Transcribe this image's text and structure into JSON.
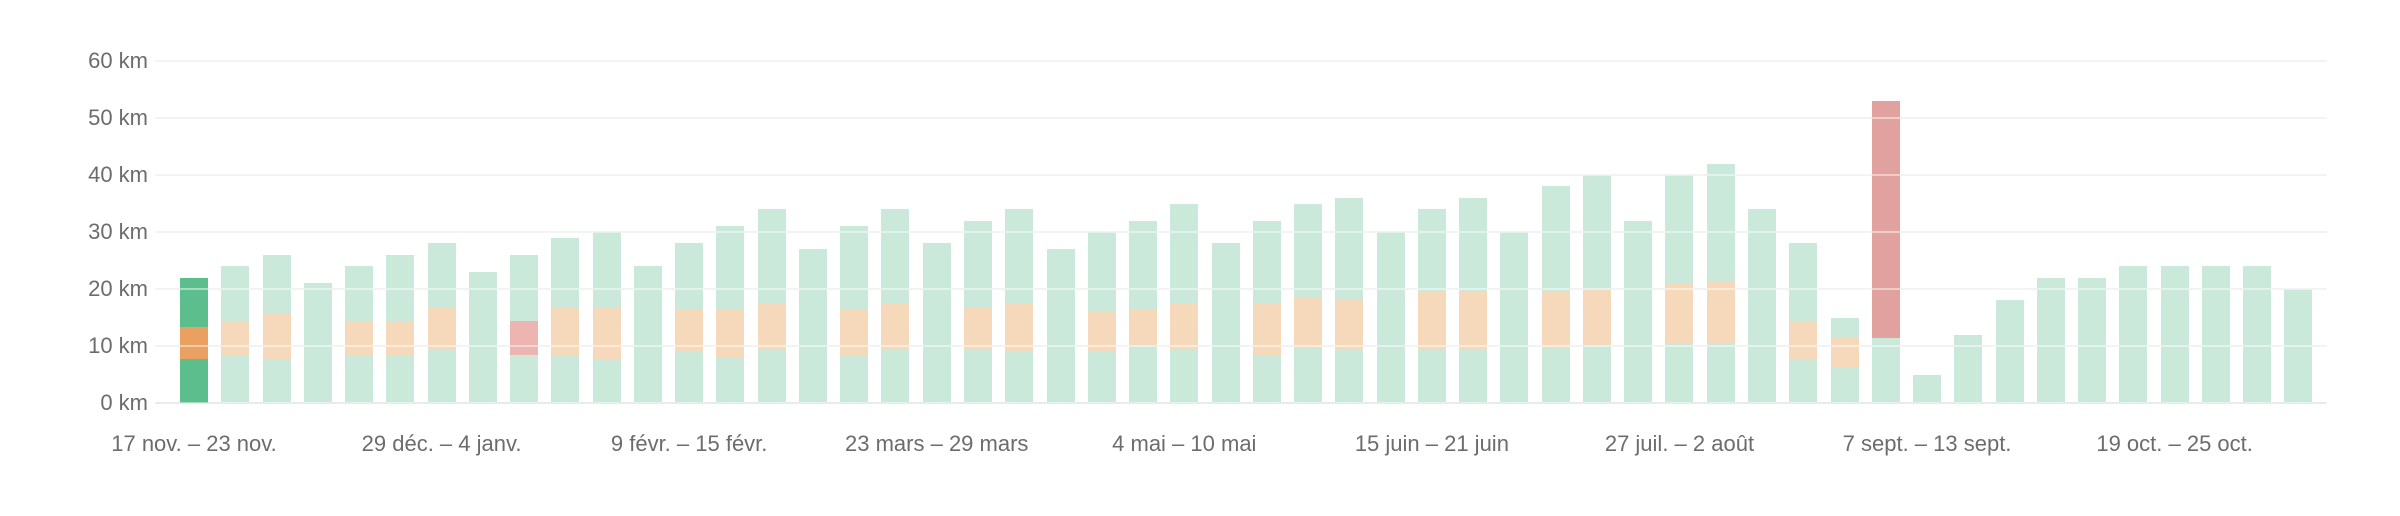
{
  "chart_data": {
    "type": "bar",
    "title": "",
    "unit": "km",
    "ylabel": "",
    "xlabel": "",
    "ylim": [
      0,
      60
    ],
    "grid": true,
    "legend": "none",
    "y_ticks": [
      {
        "km": 60,
        "label": "60 km"
      },
      {
        "km": 50,
        "label": "50 km"
      },
      {
        "km": 40,
        "label": "40 km"
      },
      {
        "km": 30,
        "label": "30 km"
      },
      {
        "km": 20,
        "label": "20 km"
      },
      {
        "km": 10,
        "label": "10 km"
      },
      {
        "km": 0,
        "label": "0 km"
      }
    ],
    "x_tick_labels": [
      {
        "bar_index": 0,
        "label": "17 nov. – 23 nov."
      },
      {
        "bar_index": 6,
        "label": "29 déc. – 4 janv."
      },
      {
        "bar_index": 12,
        "label": "9 févr. – 15 févr."
      },
      {
        "bar_index": 18,
        "label": "23 mars – 29 mars"
      },
      {
        "bar_index": 24,
        "label": "4 mai – 10 mai"
      },
      {
        "bar_index": 30,
        "label": "15 juin – 21 juin"
      },
      {
        "bar_index": 36,
        "label": "27 juil. – 2 août"
      },
      {
        "bar_index": 42,
        "label": "7 sept. – 13 sept."
      },
      {
        "bar_index": 48,
        "label": "19 oct. – 25 oct."
      }
    ],
    "bars": [
      {
        "total": 22,
        "band": [
          7.7,
          13.3
        ],
        "style": "selected"
      },
      {
        "total": 24,
        "band": [
          8.4,
          14.4
        ],
        "style": "normal"
      },
      {
        "total": 26,
        "band": [
          7.5,
          15.6
        ],
        "style": "normal"
      },
      {
        "total": 21,
        "band": null,
        "style": "normal"
      },
      {
        "total": 24,
        "band": [
          8.4,
          14.4
        ],
        "style": "normal"
      },
      {
        "total": 26,
        "band": [
          8.4,
          14.4
        ],
        "style": "normal"
      },
      {
        "total": 28,
        "band": [
          9.5,
          16.6
        ],
        "style": "normal"
      },
      {
        "total": 23,
        "band": null,
        "style": "normal"
      },
      {
        "total": 26,
        "band": [
          8.4,
          14.4
        ],
        "style": "red-band"
      },
      {
        "total": 29,
        "band": [
          8.4,
          16.6
        ],
        "style": "normal"
      },
      {
        "total": 30,
        "band": [
          7.5,
          16.6
        ],
        "style": "normal"
      },
      {
        "total": 24,
        "band": null,
        "style": "normal"
      },
      {
        "total": 28,
        "band": [
          9.0,
          16.3
        ],
        "style": "normal"
      },
      {
        "total": 31,
        "band": [
          8.1,
          16.3
        ],
        "style": "normal"
      },
      {
        "total": 34,
        "band": [
          9.5,
          17.4
        ],
        "style": "normal"
      },
      {
        "total": 27,
        "band": null,
        "style": "normal"
      },
      {
        "total": 31,
        "band": [
          8.2,
          16.5
        ],
        "style": "normal"
      },
      {
        "total": 34,
        "band": [
          9.3,
          17.4
        ],
        "style": "normal"
      },
      {
        "total": 28,
        "band": null,
        "style": "normal"
      },
      {
        "total": 32,
        "band": [
          9.3,
          16.6
        ],
        "style": "normal"
      },
      {
        "total": 34,
        "band": [
          9.1,
          17.4
        ],
        "style": "normal"
      },
      {
        "total": 27,
        "band": null,
        "style": "normal"
      },
      {
        "total": 30,
        "band": [
          9.1,
          16.0
        ],
        "style": "normal"
      },
      {
        "total": 32,
        "band": [
          10.2,
          16.5
        ],
        "style": "normal"
      },
      {
        "total": 35,
        "band": [
          9.5,
          17.5
        ],
        "style": "normal"
      },
      {
        "total": 28,
        "band": null,
        "style": "normal"
      },
      {
        "total": 32,
        "band": [
          8.2,
          17.4
        ],
        "style": "normal"
      },
      {
        "total": 35,
        "band": [
          9.8,
          18.4
        ],
        "style": "normal"
      },
      {
        "total": 36,
        "band": [
          9.5,
          18.2
        ],
        "style": "normal"
      },
      {
        "total": 30,
        "band": null,
        "style": "normal"
      },
      {
        "total": 34,
        "band": [
          9.3,
          19.5
        ],
        "style": "normal"
      },
      {
        "total": 36,
        "band": [
          9.5,
          19.5
        ],
        "style": "normal"
      },
      {
        "total": 30,
        "band": null,
        "style": "normal"
      },
      {
        "total": 38,
        "band": [
          9.8,
          19.5
        ],
        "style": "normal"
      },
      {
        "total": 40,
        "band": [
          10.0,
          19.8
        ],
        "style": "normal"
      },
      {
        "total": 32,
        "band": null,
        "style": "normal"
      },
      {
        "total": 40,
        "band": [
          10.5,
          21.0
        ],
        "style": "normal"
      },
      {
        "total": 42,
        "band": [
          10.3,
          21.2
        ],
        "style": "normal"
      },
      {
        "total": 34,
        "band": null,
        "style": "normal"
      },
      {
        "total": 28,
        "band": [
          7.5,
          14.4
        ],
        "style": "normal"
      },
      {
        "total": 15,
        "band": [
          6.3,
          11.6
        ],
        "style": "normal"
      },
      {
        "total": 53,
        "band": [
          11.4,
          53.0
        ],
        "style": "red-bar"
      },
      {
        "total": 5,
        "band": null,
        "style": "normal"
      },
      {
        "total": 12,
        "band": null,
        "style": "normal"
      },
      {
        "total": 18,
        "band": null,
        "style": "normal"
      },
      {
        "total": 22,
        "band": null,
        "style": "normal"
      },
      {
        "total": 22,
        "band": null,
        "style": "normal"
      },
      {
        "total": 24,
        "band": null,
        "style": "normal"
      },
      {
        "total": 24,
        "band": null,
        "style": "normal"
      },
      {
        "total": 24,
        "band": null,
        "style": "normal"
      },
      {
        "total": 24,
        "band": null,
        "style": "normal"
      },
      {
        "total": 20,
        "band": null,
        "style": "normal"
      }
    ]
  },
  "colors": {
    "bar_green_light": "#cbe9da",
    "band_orange_light": "#f6d9bb",
    "bar_green_selected": "#5bbe8c",
    "band_orange_selected": "#e9a061",
    "band_red": "#ecb5b2",
    "bar_red": "#e1a29f",
    "gridline": "#e9e9e9",
    "baseline": "#d9d9d9",
    "axis_text": "#6c6c6c"
  }
}
